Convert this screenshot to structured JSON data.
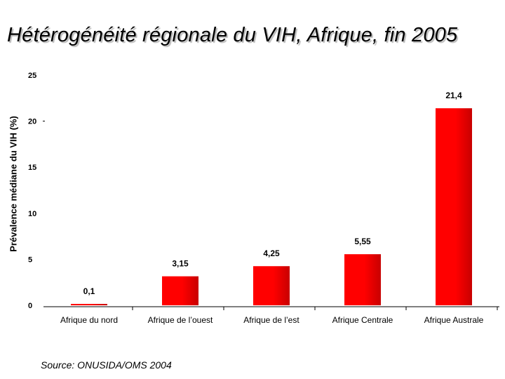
{
  "title": "Hétérogénéité régionale du VIH, Afrique, fin 2005",
  "source": "Source: ONUSIDA/OMS 2004",
  "chart_data": {
    "type": "bar",
    "title": "Hétérogénéité régionale du VIH, Afrique, fin 2005",
    "ylabel": "Prévalence médiane du VIH (%)",
    "xlabel": "",
    "categories": [
      "Afrique du nord",
      "Afrique de l’ouest",
      "Afrique de l’est",
      "Afrique Centrale",
      "Afrique Australe"
    ],
    "values": [
      0.1,
      3.15,
      4.25,
      5.55,
      21.4
    ],
    "value_labels": [
      "0,1",
      "3,15",
      "4,25",
      "5,55",
      "21,4"
    ],
    "ylim": [
      0,
      25
    ],
    "yticks": [
      0,
      5,
      10,
      15,
      20,
      25
    ],
    "ytick_labels": [
      "0",
      "5",
      "10",
      "15",
      "20",
      "25"
    ],
    "grid": false,
    "bar_color": "#ff0000",
    "bar_dark_color": "#c80000"
  }
}
